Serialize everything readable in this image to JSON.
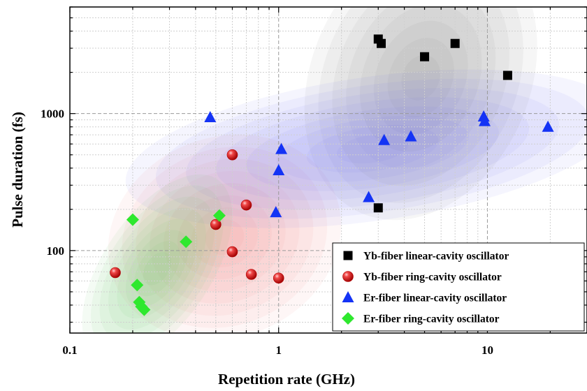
{
  "chart_data": {
    "type": "scatter",
    "xlabel": "Repetition rate (GHz)",
    "ylabel": "Pulse duration (fs)",
    "xscale": "log",
    "yscale": "log",
    "xlim": [
      0.1,
      30
    ],
    "ylim": [
      25,
      6000
    ],
    "x_ticks": [
      {
        "value": 0.1,
        "label": "0.1"
      },
      {
        "value": 1,
        "label": "1"
      },
      {
        "value": 10,
        "label": "10"
      }
    ],
    "y_ticks": [
      {
        "value": 100,
        "label": "100"
      },
      {
        "value": 1000,
        "label": "1000"
      }
    ],
    "grid": true,
    "legend_position": "bottom-right",
    "series": [
      {
        "name": "Yb-fiber linear-cavity oscillator",
        "marker": "square",
        "color": "#000000",
        "cloud_color": "#808080",
        "points": [
          [
            3.0,
            3500
          ],
          [
            3.1,
            3250
          ],
          [
            5.0,
            2600
          ],
          [
            7.0,
            3250
          ],
          [
            12.5,
            1900
          ],
          [
            3.0,
            205
          ]
        ]
      },
      {
        "name": "Yb-fiber ring-cavity oscillator",
        "marker": "sphere",
        "color": "#e8202a",
        "cloud_color": "#f08080",
        "points": [
          [
            0.165,
            69
          ],
          [
            0.6,
            500
          ],
          [
            0.7,
            215
          ],
          [
            0.5,
            155
          ],
          [
            0.6,
            98
          ],
          [
            0.74,
            67
          ],
          [
            1.0,
            63
          ]
        ]
      },
      {
        "name": "Er-fiber linear-cavity oscillator",
        "marker": "triangle",
        "color": "#1433f5",
        "cloud_color": "#7070f0",
        "points": [
          [
            0.47,
            940
          ],
          [
            1.03,
            550
          ],
          [
            1.0,
            385
          ],
          [
            0.97,
            190
          ],
          [
            2.7,
            245
          ],
          [
            3.2,
            640
          ],
          [
            4.3,
            680
          ],
          [
            9.6,
            950
          ],
          [
            9.7,
            880
          ],
          [
            19.5,
            800
          ]
        ]
      },
      {
        "name": "Er-fiber ring-cavity oscillator",
        "marker": "diamond",
        "color": "#2ee82e",
        "cloud_color": "#60c060",
        "points": [
          [
            0.2,
            168
          ],
          [
            0.52,
            180
          ],
          [
            0.36,
            116
          ],
          [
            0.21,
            56
          ],
          [
            0.215,
            42
          ],
          [
            0.22,
            39
          ],
          [
            0.227,
            37
          ]
        ]
      }
    ]
  }
}
